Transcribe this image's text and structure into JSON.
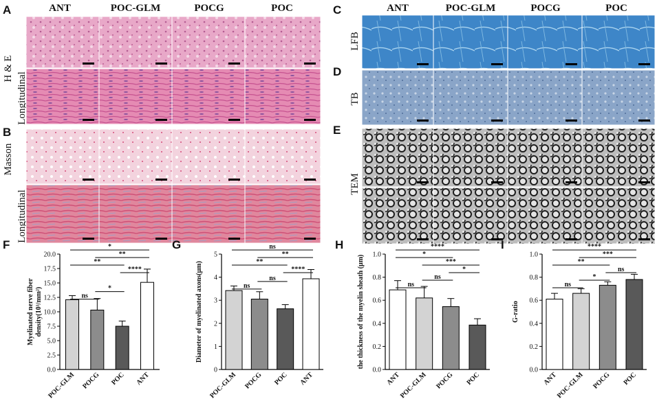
{
  "panel_letters": [
    "A",
    "B",
    "C",
    "D",
    "E",
    "F",
    "G",
    "H",
    "I"
  ],
  "groups_left": [
    "ANT",
    "POC-GLM",
    "POCG",
    "POC"
  ],
  "groups_right": [
    "ANT",
    "POC-GLM",
    "POCG",
    "POC"
  ],
  "row_labels": {
    "he": "H & E",
    "longitudinal": "Longitudinal",
    "masson": "Masson",
    "lfb": "LFB",
    "tb": "TB",
    "tem": "TEM"
  },
  "colors": {
    "he": "#e8a8c8",
    "he_long": "#e58bb3",
    "masson": "#f3d3de",
    "masson_long": "#e0879d",
    "lfb": "#3e86c8",
    "tb": "#8aa5c8",
    "tem": "#bdbdbd",
    "tem_long": "#d8d8d8"
  },
  "chart_data": [
    {
      "panel": "F",
      "type": "bar",
      "categories": [
        "POC-GLM",
        "POCG",
        "POC",
        "ANT"
      ],
      "values": [
        12.1,
        10.3,
        7.5,
        15.1
      ],
      "errors": [
        0.7,
        2.0,
        0.9,
        2.3
      ],
      "colors": [
        "#d3d3d3",
        "#8c8c8c",
        "#595959",
        "#ffffff"
      ],
      "ylabel_lines": [
        "Myelinated nerve fiber",
        "density(10³/mm²)"
      ],
      "ylim": [
        0,
        20
      ],
      "yticks": [
        "0.0",
        "2.5",
        "5.0",
        "7.5",
        "10.0",
        "12.5",
        "15.0",
        "17.5",
        "20.0"
      ],
      "sig": [
        {
          "a": 0,
          "b": 1,
          "label": "ns"
        },
        {
          "a": 0,
          "b": 2,
          "label": "**"
        },
        {
          "a": 1,
          "b": 2,
          "label": "*"
        },
        {
          "a": 2,
          "b": 3,
          "label": "****"
        },
        {
          "a": 1,
          "b": 3,
          "label": "**"
        },
        {
          "a": 0,
          "b": 3,
          "label": "*"
        }
      ]
    },
    {
      "panel": "G",
      "type": "bar",
      "categories": [
        "POC-GLM",
        "POCG",
        "POC",
        "ANT"
      ],
      "values": [
        3.42,
        3.05,
        2.63,
        3.93
      ],
      "errors": [
        0.2,
        0.32,
        0.18,
        0.4
      ],
      "colors": [
        "#d3d3d3",
        "#8c8c8c",
        "#595959",
        "#ffffff"
      ],
      "ylabel_lines": [
        "Diameter of myelinated axons(μm)"
      ],
      "ylim": [
        0,
        5
      ],
      "yticks": [
        "0",
        "1",
        "2",
        "3",
        "4",
        "5"
      ],
      "sig": [
        {
          "a": 0,
          "b": 1,
          "label": "ns"
        },
        {
          "a": 1,
          "b": 2,
          "label": "ns"
        },
        {
          "a": 2,
          "b": 3,
          "label": "****"
        },
        {
          "a": 0,
          "b": 2,
          "label": "**"
        },
        {
          "a": 1,
          "b": 3,
          "label": "**"
        },
        {
          "a": 0,
          "b": 3,
          "label": "ns"
        }
      ]
    },
    {
      "panel": "H",
      "type": "bar",
      "categories": [
        "ANT",
        "POC-GLM",
        "POCG",
        "POC"
      ],
      "values": [
        0.69,
        0.62,
        0.545,
        0.385
      ],
      "errors": [
        0.08,
        0.1,
        0.07,
        0.055
      ],
      "colors": [
        "#ffffff",
        "#d3d3d3",
        "#8c8c8c",
        "#595959"
      ],
      "ylabel_lines": [
        "the thickness of the myelin sheath (μm)"
      ],
      "ylim": [
        0,
        1
      ],
      "yticks": [
        "0.0",
        "0.2",
        "0.4",
        "0.6",
        "0.8",
        "1.0"
      ],
      "sig": [
        {
          "a": 0,
          "b": 1,
          "label": "ns"
        },
        {
          "a": 1,
          "b": 2,
          "label": "ns"
        },
        {
          "a": 2,
          "b": 3,
          "label": "*"
        },
        {
          "a": 1,
          "b": 3,
          "label": "***"
        },
        {
          "a": 0,
          "b": 2,
          "label": "*"
        },
        {
          "a": 0,
          "b": 3,
          "label": "****"
        }
      ]
    },
    {
      "panel": "I",
      "type": "bar",
      "categories": [
        "ANT",
        "POC-GLM",
        "POCG",
        "POC"
      ],
      "values": [
        0.61,
        0.66,
        0.73,
        0.78
      ],
      "errors": [
        0.05,
        0.04,
        0.03,
        0.045
      ],
      "colors": [
        "#ffffff",
        "#d3d3d3",
        "#8c8c8c",
        "#595959"
      ],
      "ylabel_lines": [
        "G-ratio"
      ],
      "ylim": [
        0,
        1
      ],
      "yticks": [
        "0.0",
        "0.2",
        "0.4",
        "0.6",
        "0.8",
        "1.0"
      ],
      "sig": [
        {
          "a": 0,
          "b": 1,
          "label": "ns"
        },
        {
          "a": 1,
          "b": 2,
          "label": "*"
        },
        {
          "a": 2,
          "b": 3,
          "label": "ns"
        },
        {
          "a": 0,
          "b": 2,
          "label": "**"
        },
        {
          "a": 1,
          "b": 3,
          "label": "***"
        },
        {
          "a": 0,
          "b": 3,
          "label": "****"
        }
      ]
    }
  ]
}
